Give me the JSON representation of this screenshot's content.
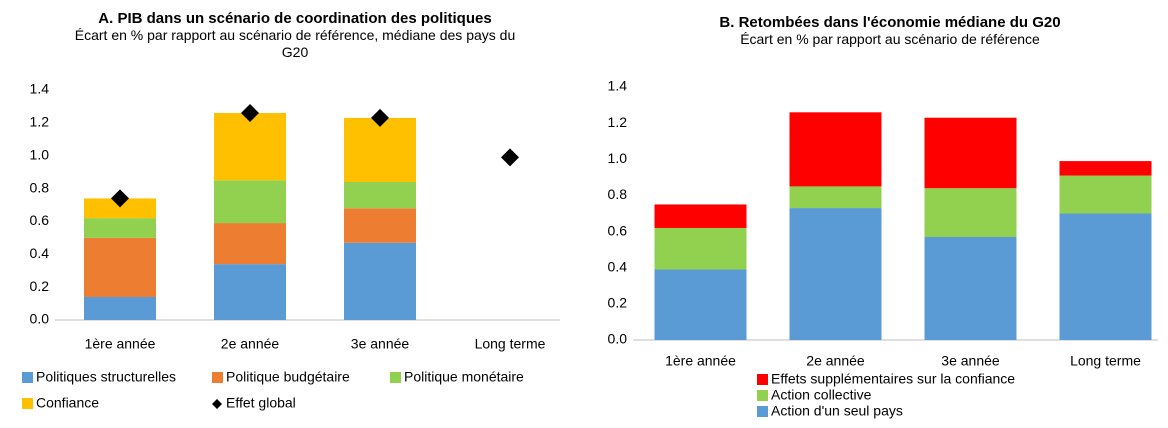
{
  "chart_data": [
    {
      "type": "bar",
      "stacked": true,
      "title": "A. PIB dans un scénario de coordination des politiques",
      "subtitle": "Écart en % par rapport au scénario de référence, médiane des pays du G20",
      "categories": [
        "1ère année",
        "2e année",
        "3e année",
        "Long terme"
      ],
      "series": [
        {
          "name": "Politiques structurelles",
          "color": "#5b9bd5",
          "values": [
            0.14,
            0.34,
            0.47,
            null
          ]
        },
        {
          "name": "Politique budgétaire",
          "color": "#ed7d31",
          "values": [
            0.36,
            0.25,
            0.21,
            null
          ]
        },
        {
          "name": "Politique monétaire",
          "color": "#92d050",
          "values": [
            0.12,
            0.26,
            0.16,
            null
          ]
        },
        {
          "name": "Confiance",
          "color": "#ffc000",
          "values": [
            0.12,
            0.41,
            0.39,
            null
          ]
        },
        {
          "name": "Effet global",
          "color": "#000000",
          "type": "scatter",
          "marker": "diamond",
          "values": [
            0.74,
            1.26,
            1.23,
            0.99
          ]
        }
      ],
      "ylim": [
        0,
        1.4
      ],
      "yticks": [
        {
          "value": 0,
          "label": "0.0"
        },
        0.2,
        0.4,
        0.6,
        0.8,
        {
          "value": 1,
          "label": "1.0"
        },
        1.2,
        1.4
      ],
      "grid": false
    },
    {
      "type": "bar",
      "stacked": true,
      "title": "B. Retombées dans l'économie médiane du G20",
      "subtitle": "Écart en % par rapport au scénario de référence",
      "categories": [
        "1ère année",
        "2e année",
        "3e année",
        "Long terme"
      ],
      "series": [
        {
          "name": "Action d'un seul pays",
          "color": "#5b9bd5",
          "values": [
            0.39,
            0.73,
            0.57,
            0.7
          ]
        },
        {
          "name": "Action collective",
          "color": "#92d050",
          "values": [
            0.23,
            0.12,
            0.27,
            0.21
          ]
        },
        {
          "name": "Effets supplémentaires sur la confiance",
          "color": "#ff0000",
          "values": [
            0.13,
            0.41,
            0.39,
            0.08
          ]
        }
      ],
      "ylim": [
        0,
        1.4
      ],
      "yticks": [
        {
          "value": 0,
          "label": "0.0"
        },
        0.2,
        0.4,
        0.6,
        0.8,
        {
          "value": 1,
          "label": "1.0"
        },
        1.2,
        1.4
      ],
      "grid": false
    }
  ]
}
